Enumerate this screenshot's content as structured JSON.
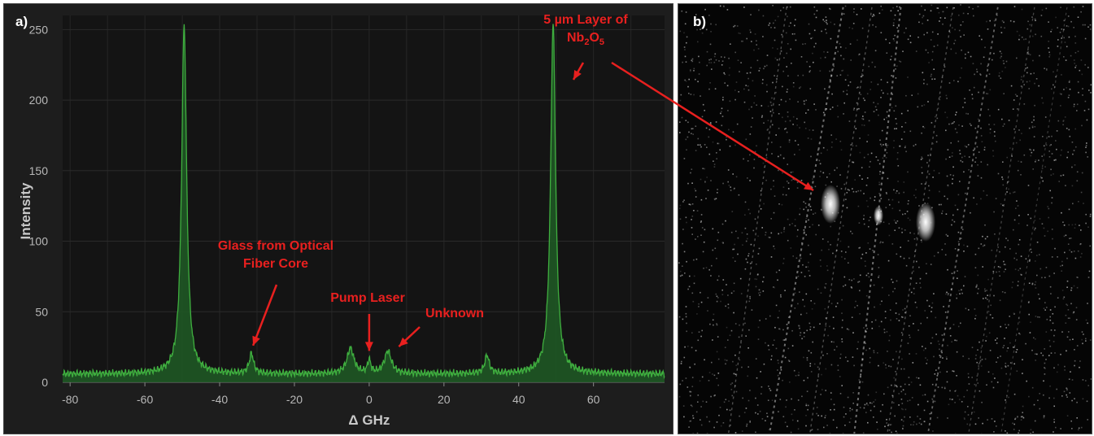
{
  "panels": {
    "a_label": "a)",
    "b_label": "b)"
  },
  "chart_data": {
    "type": "line",
    "title": "",
    "xlabel": "Δ GHz",
    "ylabel": "Intensity",
    "xlim": [
      -82,
      79
    ],
    "ylim": [
      0,
      260
    ],
    "x_ticks": [
      -80,
      -60,
      -40,
      -20,
      0,
      20,
      40,
      60
    ],
    "y_ticks": [
      0,
      50,
      100,
      150,
      200,
      250
    ],
    "grid": true,
    "baseline": 6,
    "peaks": [
      {
        "x": -49.5,
        "height": 247,
        "width": 0.8
      },
      {
        "x": 49.2,
        "height": 248,
        "width": 0.8
      },
      {
        "x": -31.5,
        "height": 14,
        "width": 0.7
      },
      {
        "x": -5.0,
        "height": 18,
        "width": 1.1
      },
      {
        "x": 0.0,
        "height": 9,
        "width": 0.5
      },
      {
        "x": 5.0,
        "height": 16,
        "width": 1.1
      },
      {
        "x": 31.5,
        "height": 13,
        "width": 0.7
      }
    ],
    "line_color": "#3fae3f",
    "fill_color": "#1f5a24",
    "annotations": [
      {
        "text_lines": [
          "Glass from Optical",
          "Fiber Core"
        ],
        "arrow_to": [
          -31.5,
          7
        ]
      },
      {
        "text_lines": [
          "Pump Laser"
        ],
        "arrow_to": [
          0,
          5
        ]
      },
      {
        "text_lines": [
          "Unknown"
        ],
        "arrow_to": [
          7.5,
          4
        ]
      },
      {
        "text_lines": [
          "5 µm Layer of",
          "Nb2O5"
        ],
        "arrow_to": [
          54,
          230
        ]
      }
    ],
    "annotation_color": "#e8201f"
  },
  "image": {
    "spots": 3,
    "streak_color": "#d8d8d8"
  }
}
